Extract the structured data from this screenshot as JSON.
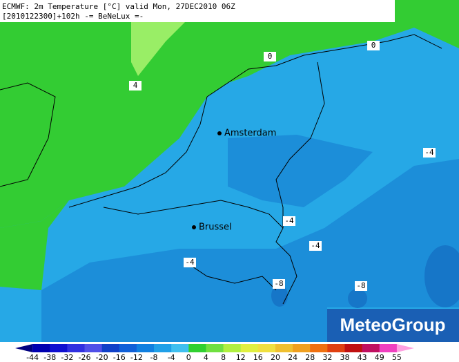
{
  "header": {
    "line1": "ECMWF: 2m Temperature [°C] valid Mon, 27DEC2010 06Z",
    "line2": "[2010122300]+102h -= BeNeLux =-"
  },
  "cities": [
    "Amsterdam",
    "Brussel"
  ],
  "contour_labels": [
    "0",
    "0",
    "4",
    "-4",
    "-4",
    "-4",
    "-4",
    "-8",
    "-8"
  ],
  "logo": "MeteoGroup",
  "legend": {
    "labels": [
      "-44",
      "-38",
      "-32",
      "-26",
      "-20",
      "-16",
      "-12",
      "-8",
      "-4",
      "0",
      "4",
      "8",
      "12",
      "16",
      "20",
      "24",
      "28",
      "32",
      "38",
      "43",
      "49",
      "55"
    ],
    "colors": [
      "#000080",
      "#0000b0",
      "#1010d0",
      "#3030e0",
      "#5050e8",
      "#1040c8",
      "#1060d8",
      "#1080e0",
      "#20a0e8",
      "#40c0f0",
      "#30d030",
      "#70e040",
      "#b0f040",
      "#e0f040",
      "#f0e040",
      "#f0c030",
      "#f0a020",
      "#f07010",
      "#e04010",
      "#c01010",
      "#c01060",
      "#f040c0",
      "#ffa0e0"
    ]
  }
}
